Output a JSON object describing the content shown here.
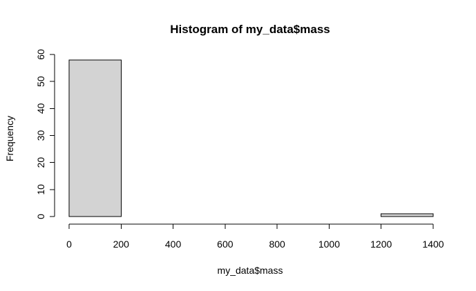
{
  "chart_data": {
    "type": "bar",
    "title": "Histogram of my_data$mass",
    "xlabel": "my_data$mass",
    "ylabel": "Frequency",
    "bins": [
      {
        "x0": 0,
        "x1": 200,
        "count": 58
      },
      {
        "x0": 200,
        "x1": 400,
        "count": 0
      },
      {
        "x0": 400,
        "x1": 600,
        "count": 0
      },
      {
        "x0": 600,
        "x1": 800,
        "count": 0
      },
      {
        "x0": 800,
        "x1": 1000,
        "count": 0
      },
      {
        "x0": 1000,
        "x1": 1200,
        "count": 0
      },
      {
        "x0": 1200,
        "x1": 1400,
        "count": 1
      }
    ],
    "xlim": [
      0,
      1400
    ],
    "ylim": [
      0,
      60
    ],
    "x_ticks": [
      0,
      200,
      400,
      600,
      800,
      1000,
      1200,
      1400
    ],
    "y_ticks": [
      0,
      10,
      20,
      30,
      40,
      50,
      60
    ],
    "bar_fill": "#d3d3d3",
    "bar_stroke": "#000000",
    "grid": false
  }
}
